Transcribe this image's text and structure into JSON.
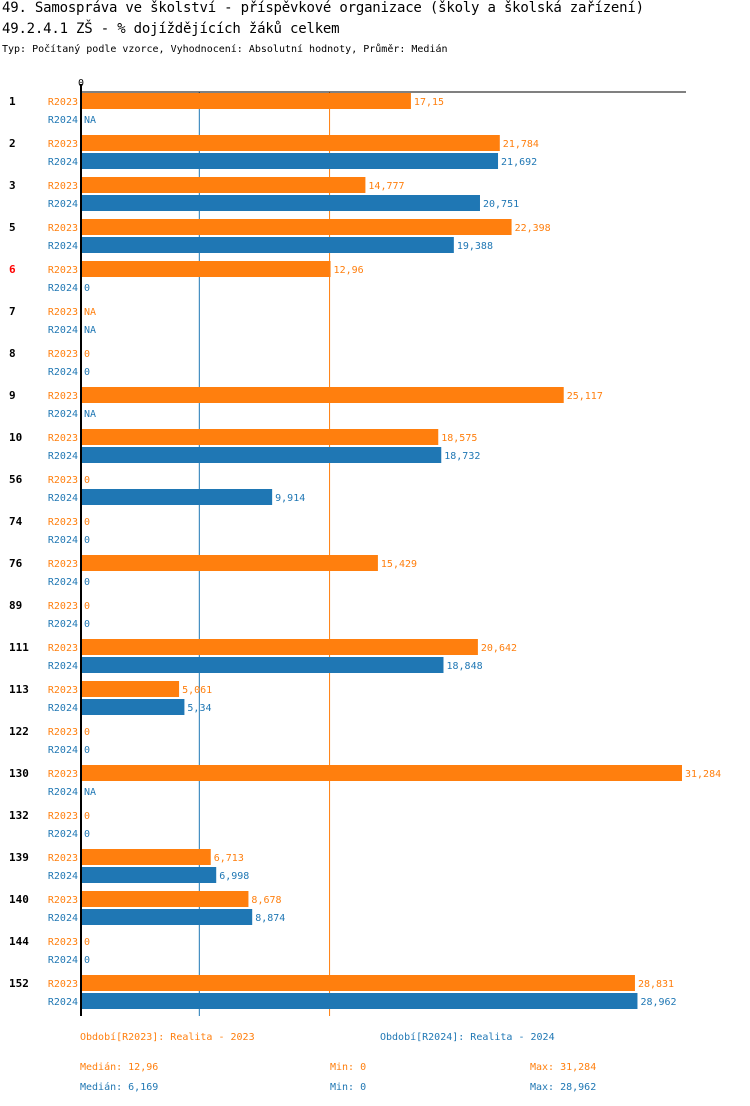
{
  "header": {
    "title_line1": "49. Samospráva ve školství - příspěvkové organizace (školy a školská zařízení)",
    "title_line2": "49.2.4.1 ZŠ - % dojíždějících žáků celkem",
    "subtitle": "Typ: Počítaný podle vzorce, Vyhodnocení: Absolutní hodnoty, Průměr: Medián"
  },
  "colors": {
    "r2023": "#ff7f0e",
    "r2024": "#1f77b4",
    "highlight_group": "#ff0000",
    "axis": "#000000"
  },
  "chart_data": {
    "type": "bar",
    "orientation": "horizontal",
    "title": "49.2.4.1 ZŠ - % dojíždějících žáků celkem",
    "xlabel": "",
    "ylabel": "",
    "x_tick_labels": [
      "0"
    ],
    "xlim": [
      0,
      31.284
    ],
    "grid": false,
    "highlighted_category": "6",
    "categories": [
      "1",
      "2",
      "3",
      "5",
      "6",
      "7",
      "8",
      "9",
      "10",
      "56",
      "74",
      "76",
      "89",
      "111",
      "113",
      "122",
      "130",
      "132",
      "139",
      "140",
      "144",
      "152"
    ],
    "series": [
      {
        "name": "R2023",
        "legend": "Období[R2023]: Realita - 2023",
        "values": [
          17.15,
          21.784,
          14.777,
          22.398,
          12.96,
          null,
          0,
          25.117,
          18.575,
          0,
          0,
          15.429,
          0,
          20.642,
          5.061,
          0,
          31.284,
          0,
          6.713,
          8.678,
          0,
          28.831
        ],
        "labels": [
          "17,15",
          "21,784",
          "14,777",
          "22,398",
          "12,96",
          "NA",
          "0",
          "25,117",
          "18,575",
          "0",
          "0",
          "15,429",
          "0",
          "20,642",
          "5,061",
          "0",
          "31,284",
          "0",
          "6,713",
          "8,678",
          "0",
          "28,831"
        ],
        "median": 12.96
      },
      {
        "name": "R2024",
        "legend": "Období[R2024]: Realita - 2024",
        "values": [
          null,
          21.692,
          20.751,
          19.388,
          0,
          null,
          0,
          null,
          18.732,
          9.914,
          0,
          0,
          0,
          18.848,
          5.34,
          0,
          null,
          0,
          6.998,
          8.874,
          0,
          28.962
        ],
        "labels": [
          "NA",
          "21,692",
          "20,751",
          "19,388",
          "0",
          "NA",
          "0",
          "NA",
          "18,732",
          "9,914",
          "0",
          "0",
          "0",
          "18,848",
          "5,34",
          "0",
          "NA",
          "0",
          "6,998",
          "8,874",
          "0",
          "28,962"
        ],
        "median": 6.169
      }
    ]
  },
  "legend": {
    "r2023": "Období[R2023]: Realita - 2023",
    "r2024": "Období[R2024]: Realita - 2024"
  },
  "stats": {
    "r2023": {
      "median": "Medián: 12,96",
      "min": "Min: 0",
      "max": "Max: 31,284"
    },
    "r2024": {
      "median": "Medián: 6,169",
      "min": "Min: 0",
      "max": "Max: 28,962"
    }
  }
}
